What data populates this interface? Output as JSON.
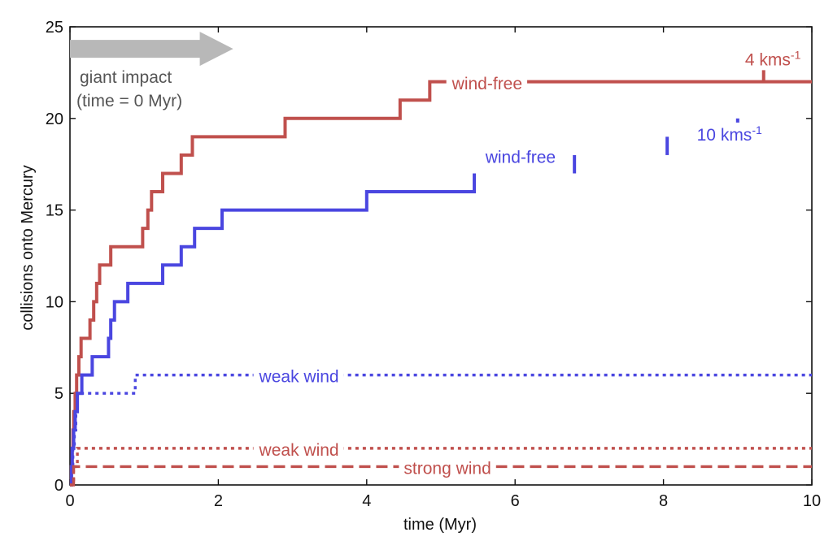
{
  "chart_data": {
    "type": "line",
    "step": true,
    "xlabel": "time (Myr)",
    "ylabel": "collisions onto Mercury",
    "xlim": [
      0,
      10
    ],
    "ylim": [
      0,
      25
    ],
    "xticks": [
      0,
      2,
      4,
      6,
      8,
      10
    ],
    "yticks": [
      0,
      5,
      10,
      15,
      20,
      25
    ],
    "grid": false,
    "legend": "none",
    "colors": {
      "red": "#c0504d",
      "blue": "#4a46e0",
      "arrow": "#b8b8b8"
    },
    "series": [
      {
        "name": "",
        "group": "4 kms-1",
        "label": "wind-free",
        "color": "#c0504d",
        "style": "solid",
        "x": [
          0,
          0.02,
          0.03,
          0.04,
          0.05,
          0.07,
          0.09,
          0.12,
          0.15,
          0.27,
          0.32,
          0.36,
          0.4,
          0.55,
          0.98,
          1.05,
          1.1,
          1.25,
          1.5,
          1.65,
          2.9,
          4.45,
          4.85,
          10.0
        ],
        "y": [
          0,
          1,
          2,
          3,
          4,
          5,
          6,
          7,
          8,
          9,
          10,
          11,
          12,
          13,
          14,
          15,
          16,
          17,
          18,
          19,
          20,
          21,
          22,
          22
        ],
        "jumps": [
          {
            "x": 9.35,
            "y": 23
          }
        ]
      },
      {
        "name": "",
        "group": "10 kms-1",
        "label": "wind-free",
        "color": "#4a46e0",
        "style": "solid",
        "x": [
          0,
          0.02,
          0.03,
          0.05,
          0.07,
          0.1,
          0.16,
          0.3,
          0.52,
          0.55,
          0.6,
          0.78,
          1.25,
          1.5,
          1.68,
          2.05,
          4.0,
          5.45
        ],
        "y": [
          0,
          1,
          2,
          3,
          4,
          5,
          6,
          7,
          8,
          9,
          10,
          11,
          12,
          13,
          14,
          15,
          16,
          17
        ],
        "jumps": [
          {
            "x": 6.8,
            "y": 18
          },
          {
            "x": 8.05,
            "y": 19
          },
          {
            "x": 9.0,
            "y": 20
          }
        ]
      },
      {
        "name": "",
        "group": "10 kms-1",
        "label": "weak wind",
        "color": "#4a46e0",
        "style": "dotted",
        "x": [
          0,
          0.02,
          0.04,
          0.06,
          0.08,
          0.1,
          0.88,
          10.0
        ],
        "y": [
          0,
          1,
          2,
          3,
          4,
          5,
          6,
          6
        ]
      },
      {
        "name": "",
        "group": "4 kms-1",
        "label": "weak wind",
        "color": "#c0504d",
        "style": "dotted",
        "x": [
          0,
          0.05,
          0.1,
          10.0
        ],
        "y": [
          0,
          1,
          2,
          2
        ]
      },
      {
        "name": "",
        "group": "4 kms-1",
        "label": "strong wind",
        "color": "#c0504d",
        "style": "dashed",
        "x": [
          0,
          0.05,
          10.0
        ],
        "y": [
          0,
          1,
          1
        ]
      }
    ],
    "annotations": [
      {
        "id": "speed-4",
        "text": "4 kms",
        "sup": "-1",
        "x": 9.1,
        "y": 22.9,
        "color": "#c0504d"
      },
      {
        "id": "speed-10",
        "text": "10 kms",
        "sup": "-1",
        "x": 8.45,
        "y": 18.8,
        "color": "#4a46e0"
      },
      {
        "id": "red-wind-free",
        "text": "wind-free",
        "x": 5.15,
        "y": 21.58,
        "color": "#c0504d"
      },
      {
        "id": "blue-wind-free",
        "text": "wind-free",
        "x": 5.6,
        "y": 17.58,
        "color": "#4a46e0"
      },
      {
        "id": "blue-weak-wind",
        "text": "weak wind",
        "x": 2.55,
        "y": 5.6,
        "color": "#4a46e0"
      },
      {
        "id": "red-weak-wind",
        "text": "weak wind",
        "x": 2.55,
        "y": 1.6,
        "color": "#c0504d"
      },
      {
        "id": "red-strong-wind",
        "text": "strong wind",
        "x": 4.5,
        "y": 0.6,
        "color": "#c0504d"
      }
    ],
    "giant_impact": {
      "line1": "giant impact",
      "line2": "(time = 0 Myr)",
      "color": "#b8b8b8"
    }
  }
}
